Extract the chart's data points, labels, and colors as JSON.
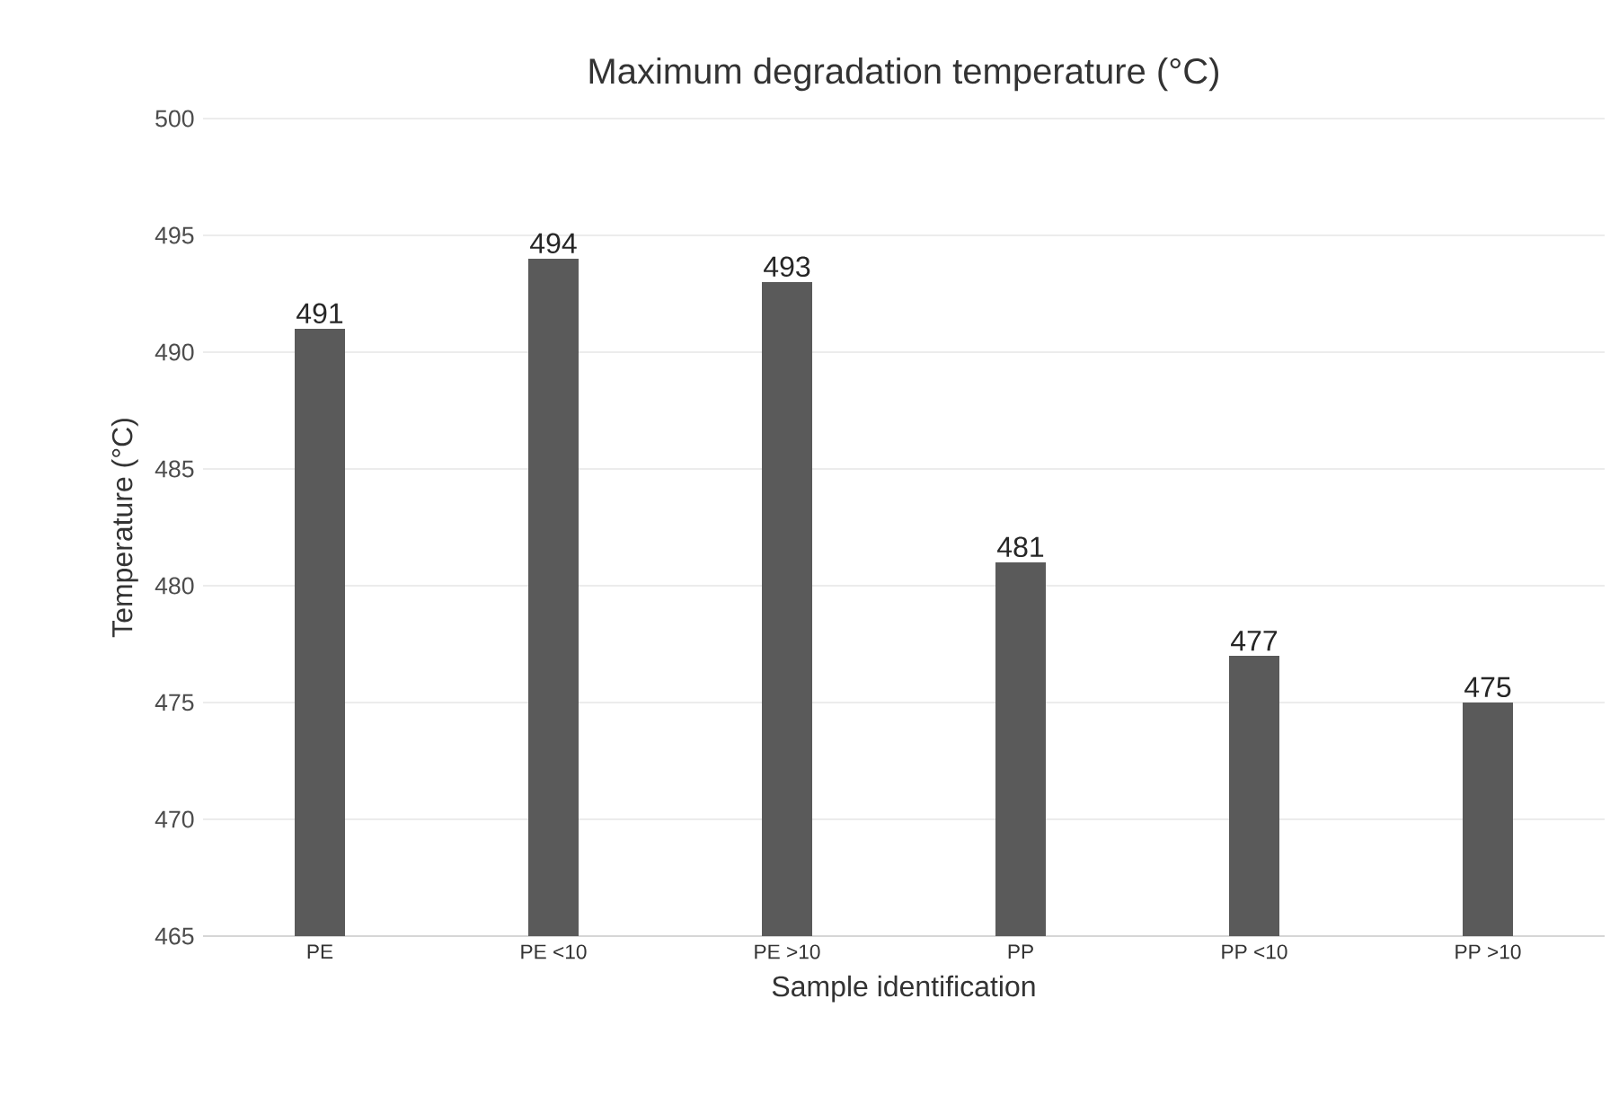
{
  "chart_data": {
    "type": "bar",
    "title": "Maximum degradation temperature (°C)",
    "xlabel": "Sample identification",
    "ylabel": "Temperature (°C)",
    "categories": [
      "PE",
      "PE <10",
      "PE >10",
      "PP",
      "PP <10",
      "PP >10"
    ],
    "values": [
      491,
      494,
      493,
      481,
      477,
      475
    ],
    "color": "#5a5a5a",
    "ylim": [
      465,
      500
    ],
    "yticks": [
      465,
      470,
      475,
      480,
      485,
      490,
      495,
      500
    ],
    "grid": "y",
    "data_labels": true
  }
}
